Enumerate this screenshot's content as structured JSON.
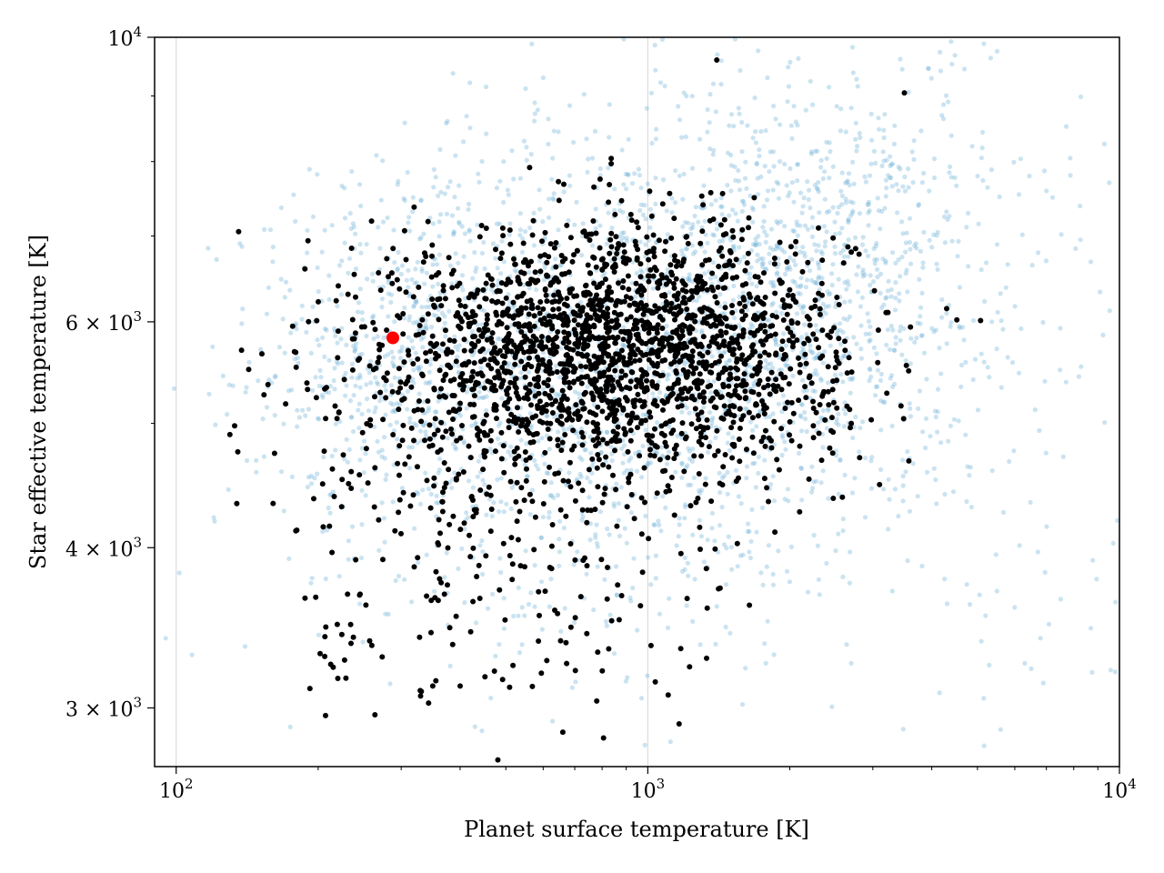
{
  "chart_data": {
    "type": "scatter",
    "xlabel": "Planet surface temperature [K]",
    "ylabel": "Star effective temperature [K]",
    "xscale": "log",
    "yscale": "log",
    "xlim": [
      90,
      10000
    ],
    "ylim": [
      2700,
      10000
    ],
    "grid": "vertical lines at major x ticks",
    "x_ticks": [
      {
        "value": 100,
        "mantissa": "10",
        "exp": "2"
      },
      {
        "value": 1000,
        "mantissa": "10",
        "exp": "3"
      },
      {
        "value": 10000,
        "mantissa": "10",
        "exp": "4"
      }
    ],
    "y_ticks": [
      {
        "value": 3000,
        "mantissa": "3 × 10",
        "exp": "3"
      },
      {
        "value": 4000,
        "mantissa": "4 × 10",
        "exp": "3"
      },
      {
        "value": 6000,
        "mantissa": "6 × 10",
        "exp": "3"
      },
      {
        "value": 10000,
        "mantissa": "10",
        "exp": "4"
      }
    ],
    "colors": {
      "background_points": "#6baed6",
      "foreground_points": "#000000",
      "highlight_point": "#ff0000"
    },
    "series": [
      {
        "role": "background",
        "color": "#6baed6",
        "opacity": 0.35,
        "clusters": [
          {
            "cx": 320,
            "cy": 5700,
            "sx": 0.17,
            "sy": 0.07,
            "n": 500
          },
          {
            "cx": 900,
            "cy": 5600,
            "sx": 0.32,
            "sy": 0.09,
            "n": 1300
          },
          {
            "cx": 2100,
            "cy": 6300,
            "sx": 0.2,
            "sy": 0.08,
            "n": 650
          },
          {
            "cx": 3000,
            "cy": 7200,
            "sx": 0.22,
            "sy": 0.08,
            "n": 200
          },
          {
            "cx": 700,
            "cy": 4200,
            "sx": 0.35,
            "sy": 0.08,
            "n": 180
          },
          {
            "cx": 1500,
            "cy": 8000,
            "sx": 0.35,
            "sy": 0.08,
            "n": 100
          },
          {
            "cx": 6000,
            "cy": 4100,
            "sx": 0.18,
            "sy": 0.09,
            "n": 60
          }
        ],
        "extra_points": [
          [
            95,
            3400
          ],
          [
            108,
            3300
          ],
          [
            140,
            3350
          ],
          [
            165,
            2620
          ],
          [
            430,
            2900
          ],
          [
            470,
            2620
          ],
          [
            520,
            2620
          ],
          [
            600,
            9300
          ],
          [
            1400,
            3600
          ],
          [
            2700,
            3250
          ],
          [
            3300,
            3700
          ],
          [
            5500,
            3700
          ],
          [
            6300,
            3250
          ],
          [
            9800,
            3200
          ],
          [
            9900,
            4200
          ],
          [
            6800,
            3400
          ]
        ]
      },
      {
        "role": "foreground",
        "color": "#000000",
        "clusters": [
          {
            "cx": 900,
            "cy": 5800,
            "sx": 0.23,
            "sy": 0.045,
            "n": 1500
          },
          {
            "cx": 600,
            "cy": 5500,
            "sx": 0.2,
            "sy": 0.05,
            "n": 450
          },
          {
            "cx": 1500,
            "cy": 5400,
            "sx": 0.15,
            "sy": 0.04,
            "n": 150
          },
          {
            "cx": 550,
            "cy": 4300,
            "sx": 0.22,
            "sy": 0.08,
            "n": 230
          },
          {
            "cx": 350,
            "cy": 4800,
            "sx": 0.18,
            "sy": 0.05,
            "n": 60
          },
          {
            "cx": 250,
            "cy": 3700,
            "sx": 0.12,
            "sy": 0.05,
            "n": 35
          }
        ],
        "extra_points": [
          [
            130,
            4900
          ],
          [
            165,
            2640
          ],
          [
            210,
            2640
          ],
          [
            1400,
            9600
          ],
          [
            3500,
            9050
          ],
          [
            2300,
            7100
          ],
          [
            2700,
            6800
          ],
          [
            3200,
            6100
          ],
          [
            2700,
            5000
          ],
          [
            2100,
            4800
          ],
          [
            1900,
            4600
          ],
          [
            400,
            3120
          ],
          [
            350,
            3120
          ],
          [
            1300,
            5100
          ],
          [
            1100,
            5200
          ]
        ]
      },
      {
        "role": "highlight",
        "color": "#ff0000",
        "points": [
          [
            288,
            5830
          ]
        ]
      }
    ]
  }
}
